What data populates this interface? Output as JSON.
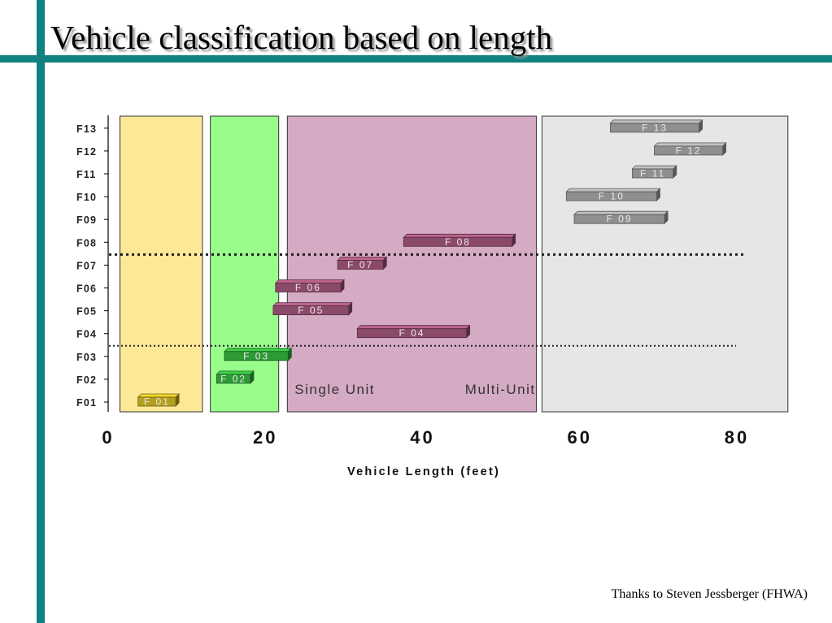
{
  "slide": {
    "title": "Vehicle classification based on length",
    "credit": "Thanks to Steven Jessberger (FHWA)"
  },
  "colors": {
    "accent": "#118080"
  },
  "chart_data": {
    "type": "bar",
    "orientation": "horizontal-range",
    "xlabel": "Vehicle Length (feet)",
    "ylabel": "",
    "xlim": [
      0,
      80
    ],
    "x_ticks": [
      "0",
      "20",
      "40",
      "60",
      "80"
    ],
    "categories": [
      "F 01",
      "F 02",
      "F 03",
      "F 04",
      "F 05",
      "F 06",
      "F 07",
      "F 08",
      "F 09",
      "F 10",
      "F 11",
      "F 12",
      "F 13"
    ],
    "axis_labels": [
      "F01",
      "F02",
      "F03",
      "F04",
      "F05",
      "F06",
      "F07",
      "F08",
      "F09",
      "F10",
      "F11",
      "F12",
      "F13"
    ],
    "regions": [
      {
        "x_range": [
          1.5,
          12
        ],
        "color": "#fde898"
      },
      {
        "x_range": [
          13,
          21.7
        ],
        "color": "#99fd8c"
      },
      {
        "x_range": [
          22.8,
          54.5
        ],
        "color": "#d4aac4",
        "labels": [
          "Single Unit",
          "Multi-Unit"
        ]
      },
      {
        "x_range": [
          55.2,
          86.5
        ],
        "color": "#e6e6e6"
      }
    ],
    "series": [
      {
        "ranges": [
          {
            "category": "F 01",
            "start": 3.8,
            "end": 8.6,
            "color": "#b5a020"
          },
          {
            "category": "F 02",
            "start": 13.8,
            "end": 18.1,
            "color": "#2d9a36"
          },
          {
            "category": "F 03",
            "start": 14.8,
            "end": 22.9,
            "color": "#2d9a36"
          },
          {
            "category": "F 04",
            "start": 31.7,
            "end": 45.6,
            "color": "#8c4a6a"
          },
          {
            "category": "F 05",
            "start": 21.0,
            "end": 30.6,
            "color": "#8c4a6a"
          },
          {
            "category": "F 06",
            "start": 21.3,
            "end": 29.6,
            "color": "#8c4a6a"
          },
          {
            "category": "F 07",
            "start": 29.2,
            "end": 35.0,
            "color": "#8c4a6a"
          },
          {
            "category": "F 08",
            "start": 37.6,
            "end": 51.4,
            "color": "#8c4a6a"
          },
          {
            "category": "F 09",
            "start": 59.3,
            "end": 70.8,
            "color": "#8f8f8f"
          },
          {
            "category": "F 10",
            "start": 58.3,
            "end": 69.8,
            "color": "#8f8f8f"
          },
          {
            "category": "F 11",
            "start": 66.7,
            "end": 71.9,
            "color": "#8f8f8f"
          },
          {
            "category": "F 12",
            "start": 69.5,
            "end": 78.2,
            "color": "#8f8f8f"
          },
          {
            "category": "F 13",
            "start": 63.9,
            "end": 75.2,
            "color": "#8f8f8f"
          }
        ]
      }
    ],
    "dividers": [
      {
        "between": [
          "F 07",
          "F 08"
        ],
        "style": "dotted-bold"
      },
      {
        "between": [
          "F 03",
          "F 04"
        ],
        "style": "dotted"
      }
    ],
    "grid": false,
    "legend": "none"
  }
}
